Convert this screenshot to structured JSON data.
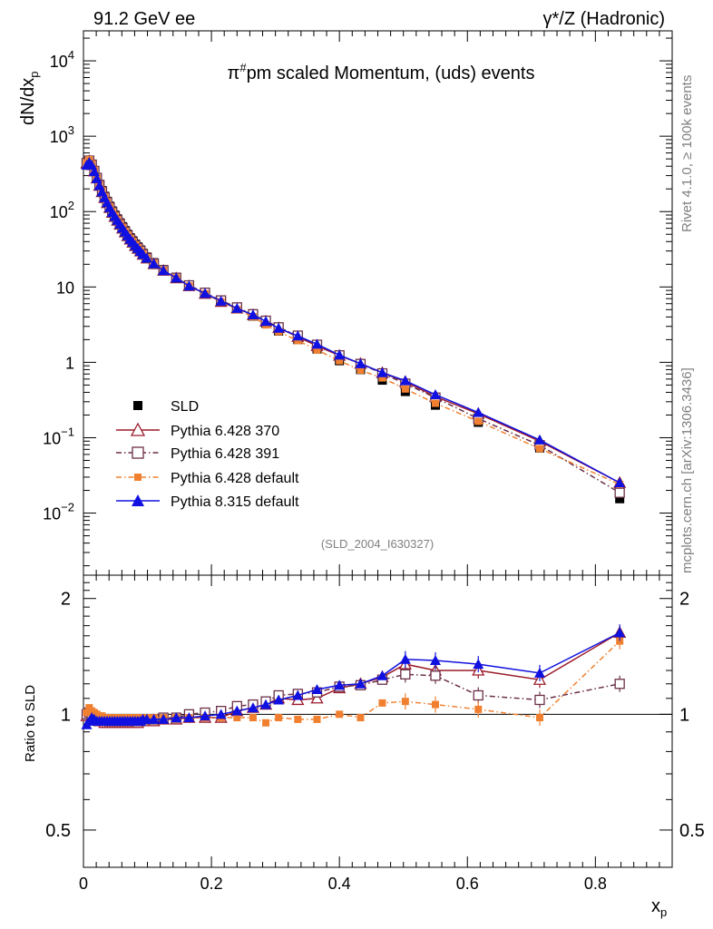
{
  "header": {
    "left": "91.2 GeV ee",
    "right": "γ*/Z (Hadronic)"
  },
  "side_text": {
    "rivet": "Rivet 4.1.0, ≥ 100k events",
    "mcplots": "mcplots.cern.ch [arXiv:1306.3436]"
  },
  "chart_data": {
    "type": "scatter",
    "title": "π#pm scaled Momentum, (uds) events",
    "title_parts": {
      "pi": "π",
      "sup": "#",
      "rest": "pm scaled Momentum, (uds) events"
    },
    "analysis_id": "(SLD_2004_I630327)",
    "xlabel": "x",
    "xlabel_sub": "p",
    "ylabel": "dN/dx",
    "ylabel_sub": "p",
    "ratio_ylabel": "Ratio to SLD",
    "xlim": [
      0,
      0.92
    ],
    "ylim_log": [
      0.0015,
      25000
    ],
    "ratio_ylim": [
      0.4,
      2.3
    ],
    "x_ticks": [
      {
        "v": 0,
        "l": "0"
      },
      {
        "v": 0.2,
        "l": "0.2"
      },
      {
        "v": 0.4,
        "l": "0.4"
      },
      {
        "v": 0.6,
        "l": "0.6"
      },
      {
        "v": 0.8,
        "l": "0.8"
      }
    ],
    "y_ticks": [
      {
        "v": 10000,
        "base": "10",
        "exp": "4"
      },
      {
        "v": 1000,
        "base": "10",
        "exp": "3"
      },
      {
        "v": 100,
        "base": "10",
        "exp": "2"
      },
      {
        "v": 10,
        "base": "10",
        "exp": ""
      },
      {
        "v": 1,
        "base": "1",
        "exp": ""
      },
      {
        "v": 0.1,
        "base": "10",
        "exp": "−1"
      },
      {
        "v": 0.01,
        "base": "10",
        "exp": "−2"
      }
    ],
    "ratio_ticks": [
      {
        "v": 0.5,
        "l": "0.5"
      },
      {
        "v": 1,
        "l": "1"
      },
      {
        "v": 2,
        "l": "2"
      }
    ],
    "x": [
      0.005,
      0.009,
      0.013,
      0.017,
      0.021,
      0.025,
      0.029,
      0.033,
      0.037,
      0.041,
      0.045,
      0.049,
      0.053,
      0.057,
      0.061,
      0.065,
      0.069,
      0.073,
      0.077,
      0.081,
      0.085,
      0.089,
      0.093,
      0.099,
      0.11,
      0.125,
      0.145,
      0.165,
      0.19,
      0.215,
      0.24,
      0.265,
      0.285,
      0.305,
      0.335,
      0.365,
      0.4,
      0.433,
      0.467,
      0.503,
      0.55,
      0.617,
      0.713,
      0.838
    ],
    "data_values": [
      440,
      470,
      420,
      350,
      285,
      230,
      190,
      160,
      137,
      118,
      102,
      90,
      80,
      71,
      63,
      56,
      50,
      45,
      41,
      37,
      34,
      31,
      28,
      25,
      21,
      17,
      13.5,
      10.5,
      8.3,
      6.5,
      5.1,
      4.1,
      3.3,
      2.6,
      2.0,
      1.5,
      1.05,
      0.8,
      0.58,
      0.41,
      0.27,
      0.16,
      0.073,
      0.0155
    ],
    "series": [
      {
        "name": "SLD",
        "color": "#000000",
        "marker": "square",
        "dash": "",
        "ratio": null
      },
      {
        "name": "Pythia 6.428 370",
        "color": "#9b1b2a",
        "marker": "triangle-open",
        "dash": "",
        "ratio": [
          0.99,
          1.0,
          0.99,
          0.98,
          0.97,
          0.96,
          0.96,
          0.95,
          0.95,
          0.95,
          0.95,
          0.95,
          0.95,
          0.95,
          0.95,
          0.95,
          0.95,
          0.95,
          0.95,
          0.95,
          0.95,
          0.96,
          0.96,
          0.96,
          0.96,
          0.97,
          0.97,
          0.98,
          0.98,
          0.98,
          1.02,
          1.04,
          1.06,
          1.1,
          1.09,
          1.1,
          1.17,
          1.2,
          1.25,
          1.35,
          1.3,
          1.3,
          1.23,
          1.63
        ]
      },
      {
        "name": "Pythia 6.428 391",
        "color": "#6b3048",
        "marker": "square-open",
        "dash": "6,3,1.5,3",
        "ratio": [
          1.0,
          1.01,
          1.0,
          0.99,
          0.98,
          0.98,
          0.97,
          0.97,
          0.97,
          0.96,
          0.96,
          0.96,
          0.96,
          0.96,
          0.96,
          0.96,
          0.96,
          0.96,
          0.96,
          0.96,
          0.96,
          0.97,
          0.97,
          0.97,
          0.97,
          0.98,
          0.98,
          1.0,
          1.01,
          1.02,
          1.05,
          1.06,
          1.08,
          1.12,
          1.13,
          1.14,
          1.18,
          1.19,
          1.23,
          1.27,
          1.26,
          1.12,
          1.09,
          1.2
        ]
      },
      {
        "name": "Pythia 6.428 default",
        "color": "#f08030",
        "marker": "square",
        "dash": "6,3,1.5,3",
        "ratio": [
          1.01,
          1.04,
          1.02,
          1.01,
          1.0,
          0.99,
          0.99,
          0.98,
          0.98,
          0.98,
          0.98,
          0.98,
          0.98,
          0.98,
          0.98,
          0.98,
          0.98,
          0.98,
          0.98,
          0.98,
          0.98,
          0.98,
          0.98,
          0.98,
          0.98,
          0.98,
          0.98,
          0.98,
          0.98,
          0.98,
          0.98,
          0.98,
          0.95,
          0.98,
          0.97,
          0.97,
          1.0,
          0.98,
          1.07,
          1.08,
          1.06,
          1.03,
          0.98,
          1.55
        ]
      },
      {
        "name": "Pythia 8.315 default",
        "color": "#1010e0",
        "marker": "triangle",
        "dash": "",
        "ratio": [
          0.94,
          0.96,
          0.98,
          0.97,
          0.96,
          0.96,
          0.96,
          0.96,
          0.96,
          0.96,
          0.96,
          0.96,
          0.96,
          0.96,
          0.96,
          0.96,
          0.96,
          0.96,
          0.96,
          0.96,
          0.96,
          0.96,
          0.97,
          0.97,
          0.97,
          0.97,
          0.98,
          0.98,
          0.99,
          1.0,
          1.02,
          1.04,
          1.06,
          1.09,
          1.12,
          1.16,
          1.19,
          1.2,
          1.26,
          1.39,
          1.38,
          1.35,
          1.28,
          1.63
        ]
      }
    ]
  }
}
